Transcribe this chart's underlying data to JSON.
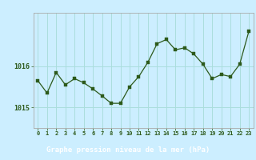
{
  "x": [
    0,
    1,
    2,
    3,
    4,
    5,
    6,
    7,
    8,
    9,
    10,
    11,
    12,
    13,
    14,
    15,
    16,
    17,
    18,
    19,
    20,
    21,
    22,
    23
  ],
  "y": [
    1015.65,
    1015.35,
    1015.85,
    1015.55,
    1015.7,
    1015.6,
    1015.45,
    1015.28,
    1015.1,
    1015.1,
    1015.5,
    1015.75,
    1016.1,
    1016.55,
    1016.65,
    1016.4,
    1016.45,
    1016.3,
    1016.05,
    1015.7,
    1015.8,
    1015.75,
    1016.05,
    1016.85
  ],
  "background_color": "#cceeff",
  "plot_bg_color": "#cceeff",
  "line_color": "#2d5a1b",
  "marker_color": "#2d5a1b",
  "grid_color": "#aadddd",
  "border_color": "#aaaaaa",
  "footer_bg": "#2d5a1b",
  "title": "Graphe pression niveau de la mer (hPa)",
  "title_color": "#ffffff",
  "tick_color": "#2d5a1b",
  "xlim": [
    -0.5,
    23.5
  ],
  "ylim": [
    1014.5,
    1017.3
  ],
  "yticks": [
    1015,
    1016
  ],
  "xtick_labels": [
    "0",
    "1",
    "2",
    "3",
    "4",
    "5",
    "6",
    "7",
    "8",
    "9",
    "10",
    "11",
    "12",
    "13",
    "14",
    "15",
    "16",
    "17",
    "18",
    "19",
    "20",
    "21",
    "22",
    "23"
  ]
}
